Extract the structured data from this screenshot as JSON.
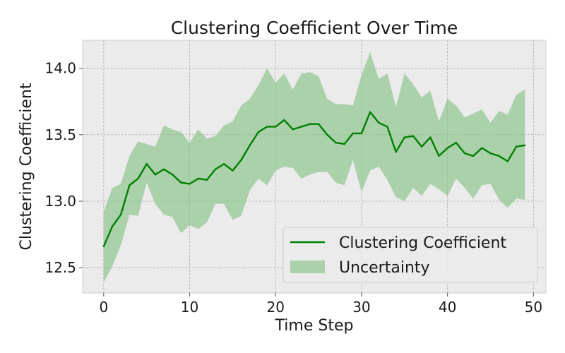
{
  "chart_data": {
    "type": "line",
    "title": "Clustering Coefficient Over Time",
    "xlabel": "Time Step",
    "ylabel": "Clustering Coefficient",
    "xlim": [
      -2.45,
      51.45
    ],
    "ylim": [
      12.31,
      14.21
    ],
    "xticks": [
      0,
      10,
      20,
      30,
      40,
      50
    ],
    "yticks": [
      12.5,
      13.0,
      13.5,
      14.0
    ],
    "xtick_labels": [
      "0",
      "10",
      "20",
      "30",
      "40",
      "50"
    ],
    "ytick_labels": [
      "12.5",
      "13.0",
      "13.5",
      "14.0"
    ],
    "grid": true,
    "legend_position": "lower-right",
    "x": [
      0,
      1,
      2,
      3,
      4,
      5,
      6,
      7,
      8,
      9,
      10,
      11,
      12,
      13,
      14,
      15,
      16,
      17,
      18,
      19,
      20,
      21,
      22,
      23,
      24,
      25,
      26,
      27,
      28,
      29,
      30,
      31,
      32,
      33,
      34,
      35,
      36,
      37,
      38,
      39,
      40,
      41,
      42,
      43,
      44,
      45,
      46,
      47,
      48,
      49
    ],
    "series": [
      {
        "name": "Clustering Coefficient",
        "color": "#008000",
        "values": [
          12.66,
          12.81,
          12.9,
          13.12,
          13.17,
          13.28,
          13.2,
          13.24,
          13.2,
          13.14,
          13.13,
          13.17,
          13.16,
          13.24,
          13.28,
          13.23,
          13.31,
          13.42,
          13.52,
          13.56,
          13.56,
          13.61,
          13.54,
          13.56,
          13.58,
          13.58,
          13.5,
          13.44,
          13.43,
          13.51,
          13.51,
          13.67,
          13.59,
          13.56,
          13.37,
          13.48,
          13.49,
          13.41,
          13.48,
          13.34,
          13.4,
          13.44,
          13.36,
          13.34,
          13.4,
          13.36,
          13.34,
          13.3,
          13.41,
          13.42
        ]
      }
    ],
    "band": {
      "name": "Uncertainty",
      "color": "#7fbf7f",
      "lower": [
        12.39,
        12.51,
        12.67,
        12.9,
        12.89,
        13.14,
        12.98,
        12.9,
        12.88,
        12.76,
        12.82,
        12.79,
        12.84,
        12.98,
        12.98,
        12.86,
        12.89,
        13.08,
        13.17,
        13.12,
        13.23,
        13.26,
        13.25,
        13.17,
        13.2,
        13.22,
        13.22,
        13.14,
        13.12,
        13.31,
        13.07,
        13.23,
        13.26,
        13.16,
        13.03,
        13.0,
        13.1,
        13.04,
        13.13,
        13.09,
        13.04,
        13.17,
        13.1,
        13.02,
        13.12,
        13.13,
        13.01,
        12.95,
        13.02,
        13.01
      ],
      "upper": [
        12.92,
        13.1,
        13.13,
        13.34,
        13.45,
        13.43,
        13.41,
        13.57,
        13.54,
        13.52,
        13.44,
        13.54,
        13.47,
        13.49,
        13.57,
        13.6,
        13.72,
        13.77,
        13.87,
        14.0,
        13.89,
        13.96,
        13.84,
        13.96,
        13.97,
        13.94,
        13.77,
        13.73,
        13.73,
        13.72,
        13.95,
        14.12,
        13.92,
        13.96,
        13.71,
        13.96,
        13.88,
        13.78,
        13.83,
        13.6,
        13.77,
        13.72,
        13.63,
        13.66,
        13.69,
        13.59,
        13.68,
        13.65,
        13.8,
        13.84
      ]
    }
  }
}
